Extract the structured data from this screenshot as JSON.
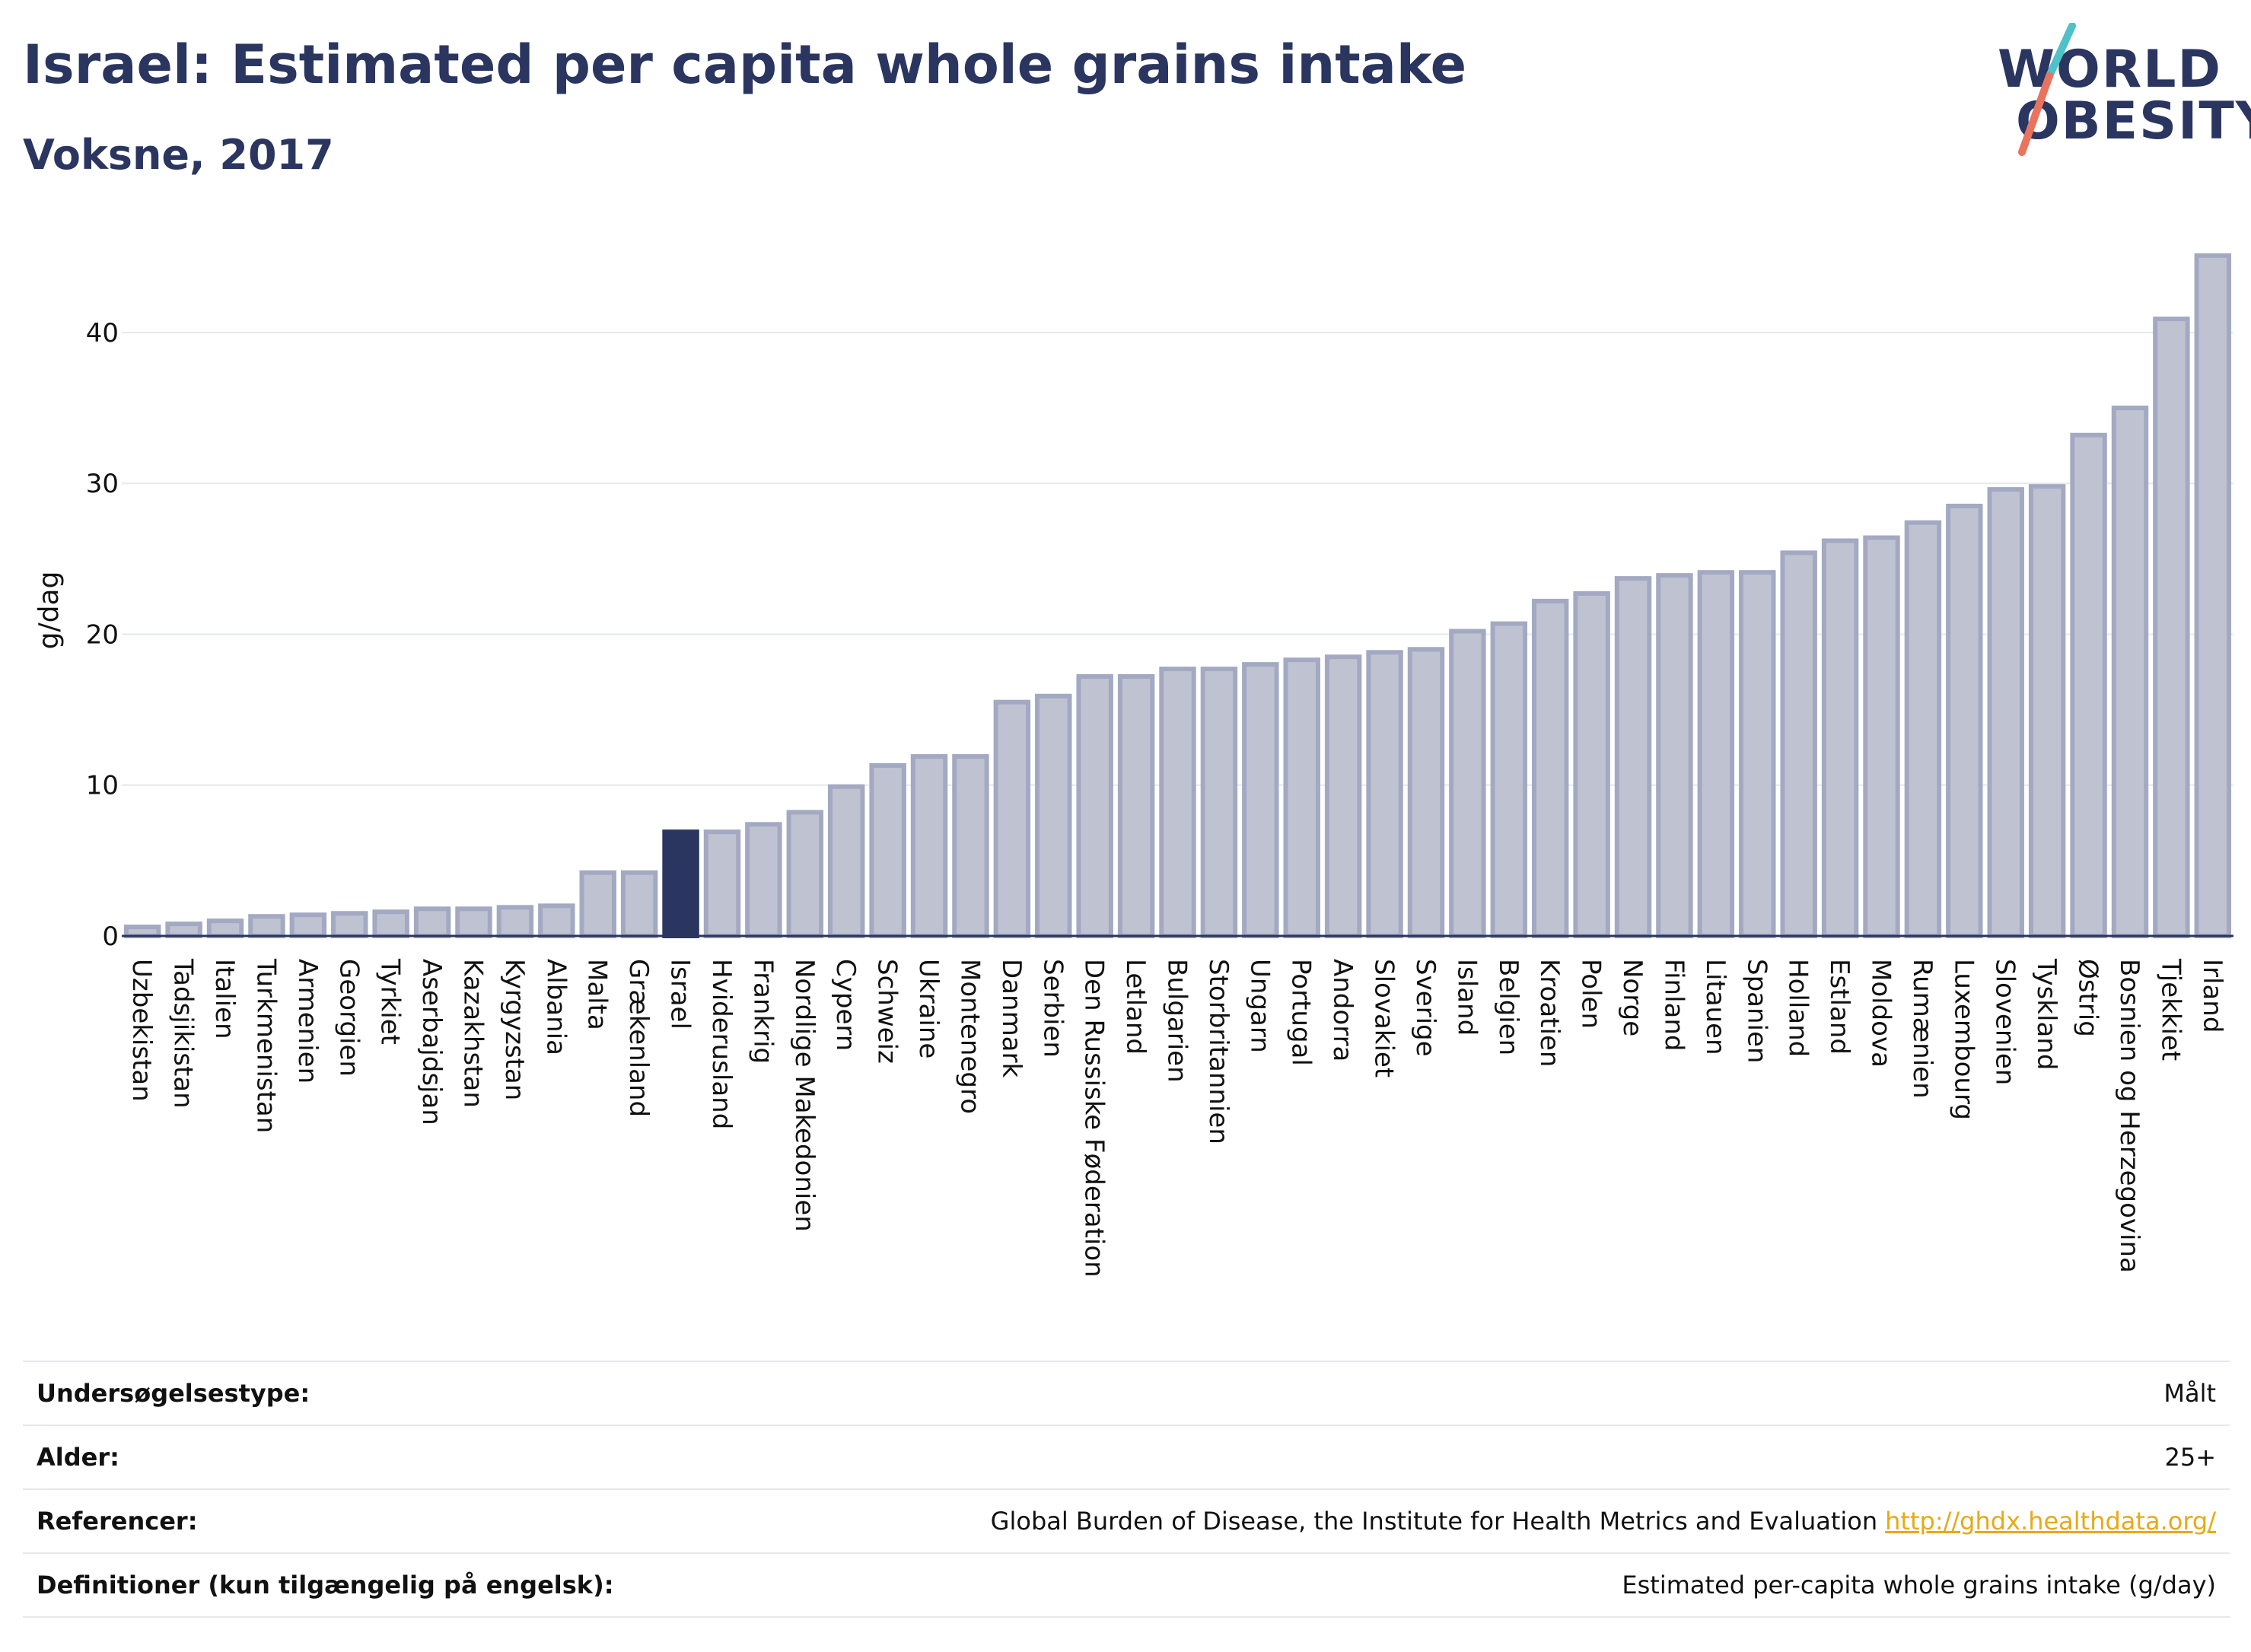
{
  "header": {
    "title": "Israel: Estimated per capita whole grains intake",
    "subtitle": "Voksne, 2017"
  },
  "logo": {
    "line1": "WORLD",
    "line2": "OBESITY",
    "accent_colors": [
      "#4fc1c9",
      "#e8735e"
    ]
  },
  "colors": {
    "highlight": "#2a3560",
    "bar_fill": "#bfc3d1",
    "bar_stroke": "#a3a9c2",
    "text": "#2a3560"
  },
  "chart_data": {
    "type": "bar",
    "title": "Israel: Estimated per capita whole grains intake",
    "subtitle": "Voksne, 2017",
    "xlabel": "",
    "ylabel": "g/dag",
    "ylim": [
      0,
      46
    ],
    "yticks": [
      0,
      10,
      20,
      30,
      40
    ],
    "grid": true,
    "highlight": "Israel",
    "categories": [
      "Uzbekistan",
      "Tadsjikistan",
      "Italien",
      "Turkmenistan",
      "Armenien",
      "Georgien",
      "Tyrkiet",
      "Aserbajdsjan",
      "Kazakhstan",
      "Kyrgyzstan",
      "Albania",
      "Malta",
      "Grækenland",
      "Israel",
      "Hviderusland",
      "Frankrig",
      "Nordlige Makedonien",
      "Cypern",
      "Schweiz",
      "Ukraine",
      "Montenegro",
      "Danmark",
      "Serbien",
      "Den Russiske Føderation",
      "Letland",
      "Bulgarien",
      "Storbritannien",
      "Ungarn",
      "Portugal",
      "Andorra",
      "Slovakiet",
      "Sverige",
      "Island",
      "Belgien",
      "Kroatien",
      "Polen",
      "Norge",
      "Finland",
      "Litauen",
      "Spanien",
      "Holland",
      "Estland",
      "Moldova",
      "Rumænien",
      "Luxembourg",
      "Slovenien",
      "Tyskland",
      "Østrig",
      "Bosnien og Herzegovina",
      "Tjekkiet",
      "Irland"
    ],
    "values": [
      0.6,
      0.8,
      1.0,
      1.3,
      1.4,
      1.5,
      1.6,
      1.8,
      1.8,
      1.9,
      2.0,
      4.2,
      4.2,
      6.9,
      6.9,
      7.4,
      8.2,
      9.9,
      11.3,
      11.9,
      11.9,
      15.5,
      15.9,
      17.2,
      17.2,
      17.7,
      17.7,
      18.0,
      18.3,
      18.5,
      18.8,
      19.0,
      20.2,
      20.7,
      22.2,
      22.7,
      23.7,
      23.9,
      24.1,
      24.1,
      25.4,
      26.2,
      26.4,
      27.4,
      28.5,
      29.6,
      29.8,
      33.2,
      35.0,
      40.9,
      45.1
    ]
  },
  "info": {
    "rows": [
      {
        "label": "Undersøgelsestype:",
        "value": "Målt",
        "link": ""
      },
      {
        "label": "Alder:",
        "value": "25+",
        "link": ""
      },
      {
        "label": "Referencer:",
        "value": "Global Burden of Disease, the Institute for Health Metrics and Evaluation",
        "link": "http://ghdx.healthdata.org/"
      },
      {
        "label": "Definitioner (kun tilgængelig på engelsk):",
        "value": "Estimated per-capita whole grains intake (g/day)",
        "link": ""
      }
    ]
  }
}
